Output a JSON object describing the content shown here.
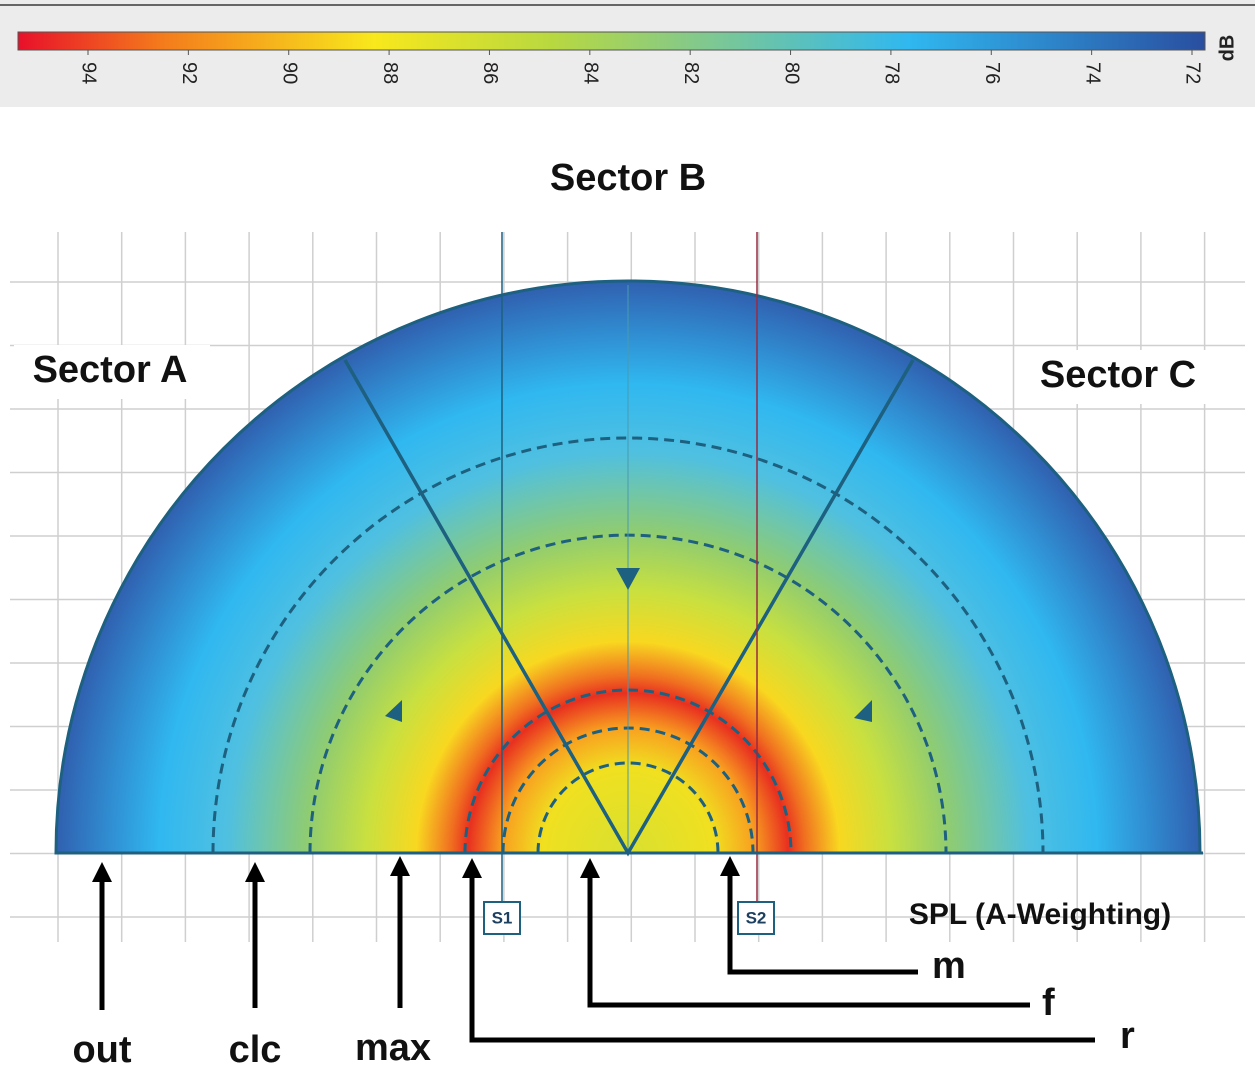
{
  "colorbar": {
    "ticks": [
      94,
      92,
      90,
      88,
      86,
      84,
      82,
      80,
      78,
      76,
      74,
      72
    ],
    "unit": "dB"
  },
  "sectors": [
    "Sector A",
    "Sector B",
    "Sector C"
  ],
  "axis_label": "SPL (A-Weighting)",
  "sensors": [
    "S1",
    "S2"
  ],
  "markers": [
    "out",
    "clc",
    "max",
    "r",
    "f",
    "m"
  ]
}
